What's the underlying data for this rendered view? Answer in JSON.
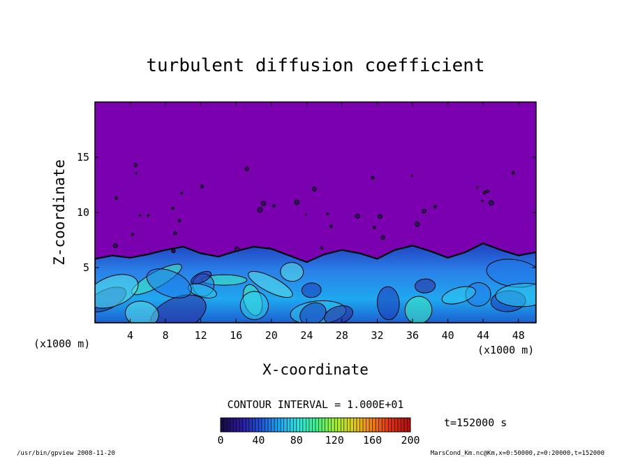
{
  "chart_data": {
    "type": "heatmap",
    "title": "turbulent diffusion coefficient",
    "xlabel": "X-coordinate",
    "ylabel": "Z-coordinate",
    "x_unit_label_left": "(x1000 m)",
    "x_unit_label_right": "(x1000 m)",
    "xlim": [
      0,
      50
    ],
    "ylim": [
      0,
      20
    ],
    "x_ticks": [
      4,
      8,
      12,
      16,
      20,
      24,
      28,
      32,
      36,
      40,
      44,
      48
    ],
    "y_ticks": [
      5,
      10,
      15
    ],
    "contour_interval": "CONTOUR INTERVAL = 1.000E+01",
    "time_label": "t=152000 s",
    "colorbar": {
      "min": 0,
      "max": 200,
      "ticks": [
        0,
        40,
        80,
        120,
        160,
        200
      ],
      "colors": [
        "#1a0a4a",
        "#2a1a9a",
        "#1f4fd0",
        "#1fa0f0",
        "#30e0e0",
        "#40f090",
        "#9af030",
        "#e0d020",
        "#f08020",
        "#e03010",
        "#b01010"
      ]
    },
    "background_color": "#7a00b0",
    "turbulent_layer": {
      "top_profile_x": [
        0,
        2,
        4,
        6,
        8,
        10,
        12,
        14,
        16,
        18,
        20,
        22,
        24,
        26,
        28,
        30,
        32,
        34,
        36,
        38,
        40,
        42,
        44,
        46,
        48,
        50
      ],
      "top_profile_z": [
        5.8,
        6.1,
        5.9,
        6.2,
        6.6,
        6.9,
        6.3,
        6.0,
        6.5,
        6.9,
        6.7,
        6.1,
        5.5,
        6.2,
        6.6,
        6.3,
        5.8,
        6.6,
        7.0,
        6.5,
        5.9,
        6.4,
        7.2,
        6.6,
        6.1,
        6.4
      ]
    }
  },
  "footer": {
    "left": "/usr/bin/gpview  2008-11-20",
    "right": "MarsCond_Km.nc@Km,x=0:50000,z=0:20000,t=152000"
  }
}
